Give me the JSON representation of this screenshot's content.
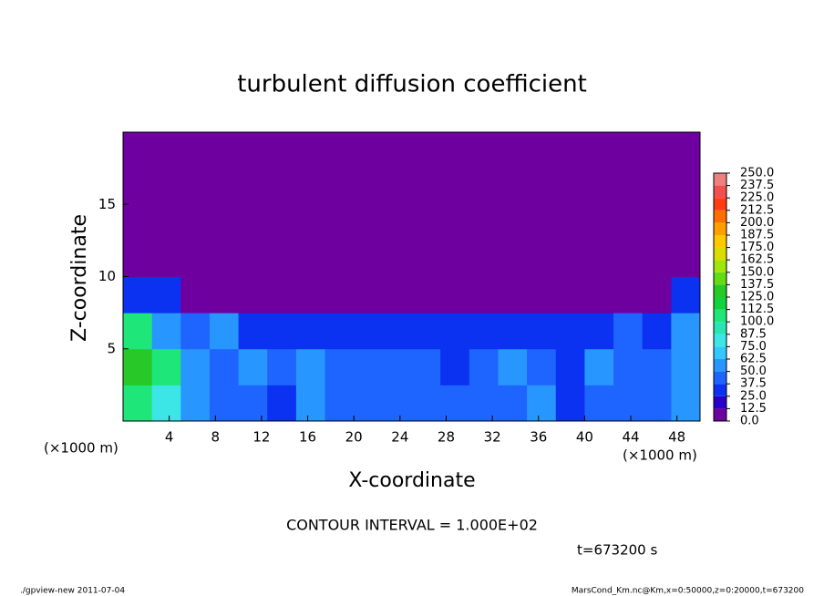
{
  "chart_data": {
    "type": "heatmap",
    "title": "turbulent diffusion coefficient",
    "x_label": "X-coordinate",
    "y_label": "Z-coordinate",
    "x_unit": "(×1000 m)",
    "y_unit": "(×1000 m)",
    "contour_note": "CONTOUR INTERVAL = 1.000E+02",
    "time_note": "t=673200 s",
    "footer_left": "./gpview-new  2011-07-04",
    "footer_right": "MarsCond_Km.nc@Km,x=0:50000,z=0:20000,t=673200",
    "xlim": [
      0,
      50
    ],
    "ylim": [
      0,
      20
    ],
    "xticks": [
      4,
      8,
      12,
      16,
      20,
      24,
      28,
      32,
      36,
      40,
      44,
      48
    ],
    "yticks": [
      5,
      10,
      15
    ],
    "x_edges": [
      0,
      2.5,
      5,
      7.5,
      10,
      12.5,
      15,
      17.5,
      20,
      22.5,
      25,
      27.5,
      30,
      32.5,
      35,
      37.5,
      40,
      42.5,
      45,
      47.5,
      50
    ],
    "y_edges": [
      0,
      2.5,
      5,
      7.5,
      10,
      12.5,
      15,
      17.5,
      20
    ],
    "values": [
      [
        112,
        87,
        50,
        45,
        40,
        35,
        50,
        45,
        40,
        45,
        40,
        45,
        40,
        45,
        50,
        35,
        40,
        45,
        40,
        50
      ],
      [
        125,
        100,
        50,
        40,
        50,
        45,
        50,
        40,
        45,
        40,
        40,
        35,
        45,
        50,
        40,
        35,
        50,
        45,
        45,
        62
      ],
      [
        100,
        62,
        40,
        50,
        37,
        30,
        35,
        30,
        35,
        25,
        25,
        30,
        30,
        35,
        25,
        30,
        35,
        40,
        37,
        62
      ],
      [
        37,
        25,
        12,
        0,
        0,
        12,
        0,
        12,
        0,
        0,
        0,
        0,
        0,
        12,
        0,
        0,
        12,
        0,
        0,
        25
      ],
      [
        12,
        0,
        0,
        0,
        0,
        0,
        0,
        0,
        0,
        0,
        12,
        12,
        0,
        0,
        0,
        0,
        12,
        12,
        0,
        12
      ],
      [
        12,
        12,
        0,
        0,
        0,
        0,
        12,
        0,
        0,
        0,
        0,
        0,
        0,
        0,
        0,
        0,
        0,
        0,
        0,
        12
      ],
      [
        12,
        12,
        0,
        0,
        0,
        0,
        0,
        0,
        0,
        12,
        12,
        0,
        0,
        0,
        0,
        0,
        0,
        0,
        0,
        12
      ],
      [
        0,
        0,
        0,
        0,
        0,
        0,
        0,
        0,
        0,
        0,
        0,
        0,
        0,
        0,
        0,
        0,
        0,
        0,
        0,
        0
      ]
    ],
    "colorbar": {
      "levels": [
        {
          "value": 0,
          "label": "0.0"
        },
        12.5,
        {
          "value": 25,
          "label": "25.0"
        },
        37.5,
        {
          "value": 50,
          "label": "50.0"
        },
        62.5,
        {
          "value": 75,
          "label": "75.0"
        },
        87.5,
        {
          "value": 100,
          "label": "100.0"
        },
        112.5,
        {
          "value": 125,
          "label": "125.0"
        },
        137.5,
        {
          "value": 150,
          "label": "150.0"
        },
        162.5,
        {
          "value": 175,
          "label": "175.0"
        },
        187.5,
        {
          "value": 200,
          "label": "200.0"
        },
        212.5,
        {
          "value": 225,
          "label": "225.0"
        },
        237.5,
        {
          "value": 250,
          "label": "250.0"
        }
      ],
      "colors": [
        "#6e00a0",
        "#2800c8",
        "#0a32f0",
        "#1e64ff",
        "#2896ff",
        "#32c8ff",
        "#3ce6e6",
        "#28e6b4",
        "#1ee678",
        "#14d23c",
        "#28c828",
        "#64dc14",
        "#a0e60a",
        "#dcdc00",
        "#ffc800",
        "#ffa000",
        "#ff6e00",
        "#ff3c14",
        "#f05050",
        "#f08080"
      ]
    }
  }
}
